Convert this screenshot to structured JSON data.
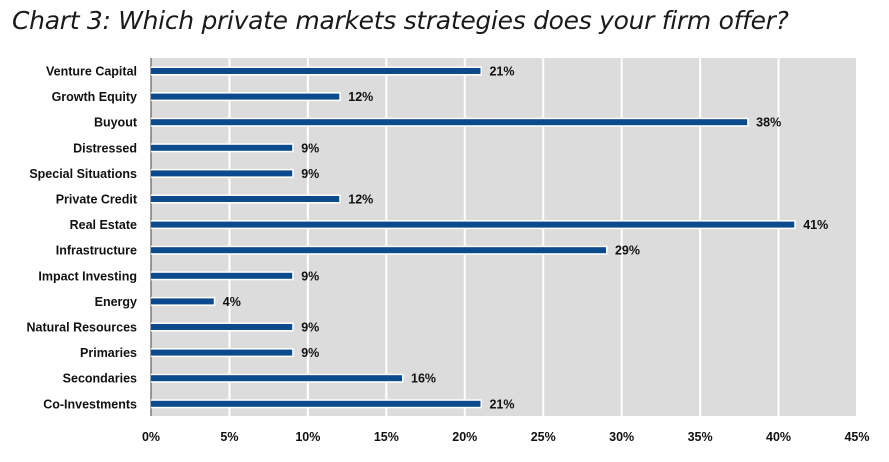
{
  "chart_data": {
    "type": "bar",
    "orientation": "horizontal",
    "title": "Chart 3: Which private markets strategies does your firm offer?",
    "categories": [
      "Venture Capital",
      "Growth Equity",
      "Buyout",
      "Distressed",
      "Special Situations",
      "Private Credit",
      "Real Estate",
      "Infrastructure",
      "Impact Investing",
      "Energy",
      "Natural Resources",
      "Primaries",
      "Secondaries",
      "Co-Investments"
    ],
    "values": [
      21,
      12,
      38,
      9,
      9,
      12,
      41,
      29,
      9,
      4,
      9,
      9,
      16,
      21
    ],
    "value_labels": [
      "21%",
      "12%",
      "38%",
      "9%",
      "9%",
      "12%",
      "41%",
      "29%",
      "9%",
      "4%",
      "9%",
      "9%",
      "16%",
      "21%"
    ],
    "x_ticks": [
      0,
      5,
      10,
      15,
      20,
      25,
      30,
      35,
      40,
      45
    ],
    "x_tick_labels": [
      "0%",
      "5%",
      "10%",
      "15%",
      "20%",
      "25%",
      "30%",
      "35%",
      "40%",
      "45%"
    ],
    "xlim": [
      0,
      45
    ],
    "grid": true,
    "colors": {
      "bar": "#0b4a8b",
      "plot_background": "#dcdcdc",
      "gridline": "#ffffff"
    }
  }
}
